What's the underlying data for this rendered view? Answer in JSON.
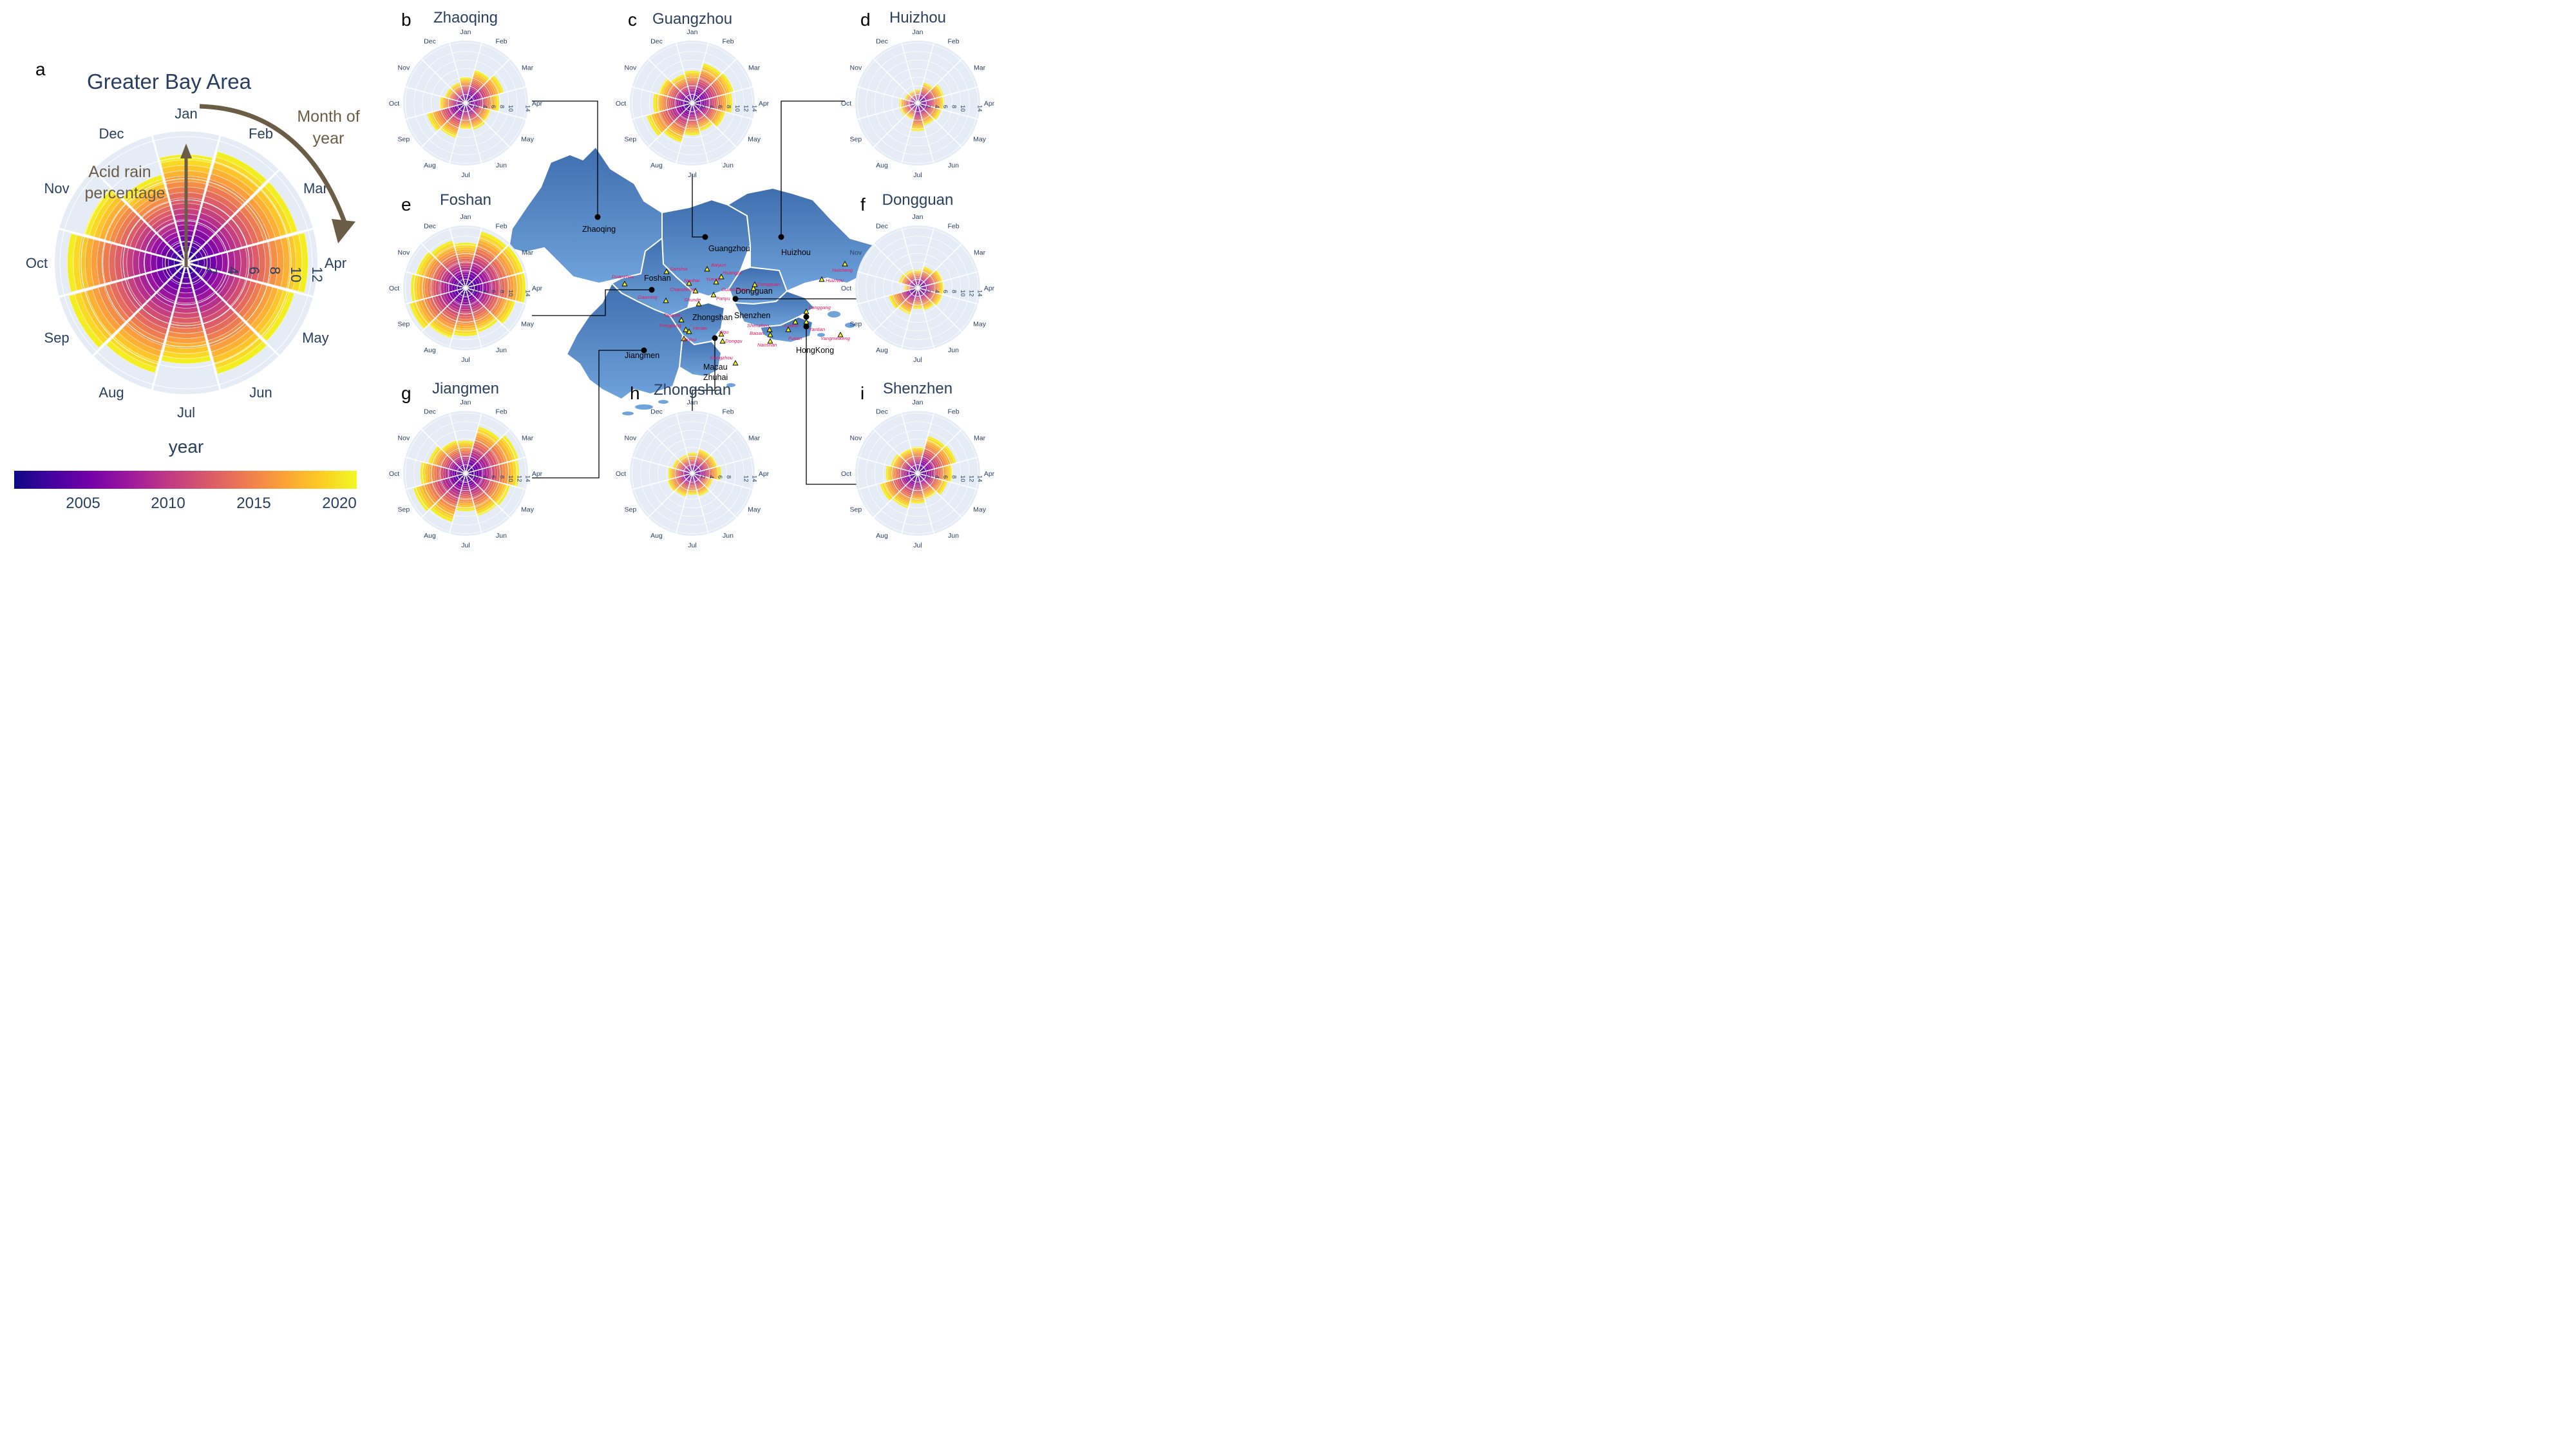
{
  "colors": {
    "polar_bg": "#e5ecf6",
    "grid": "#ffffff",
    "text": "#2a3f5f",
    "annotation": "#6b5d45",
    "map_fill": "#5b8cc9",
    "map_fill_dark": "#416fae",
    "border": "#ffffff",
    "site_label": "#e8175d",
    "leader": "#000000"
  },
  "colorscale": [
    "#0d0887",
    "#46039f",
    "#7201a8",
    "#9c179e",
    "#bd3786",
    "#d8576b",
    "#ed7953",
    "#fb9f3a",
    "#fdca26",
    "#f0f921"
  ],
  "months": [
    "Jan",
    "Feb",
    "Mar",
    "Apr",
    "May",
    "Jun",
    "Jul",
    "Aug",
    "Sep",
    "Oct",
    "Nov",
    "Dec"
  ],
  "main": {
    "letter": "a",
    "title": "Greater Bay Area",
    "annotation_month": [
      "Month of",
      "year"
    ],
    "annotation_acid": [
      "Acid rain",
      "percentage"
    ],
    "colorbar_title": "year",
    "colorbar_ticks": [
      "2005",
      "2010",
      "2015",
      "2020"
    ]
  },
  "map": {
    "cities": [
      {
        "name": "Zhaoqing",
        "panel": "b"
      },
      {
        "name": "Guangzhou",
        "panel": "c"
      },
      {
        "name": "Huizhou",
        "panel": "d"
      },
      {
        "name": "Foshan",
        "panel": "e"
      },
      {
        "name": "Dongguan",
        "panel": "f"
      },
      {
        "name": "Jiangmen",
        "panel": "g"
      },
      {
        "name": "Zhongshan",
        "panel": "h"
      },
      {
        "name": "Shenzhen",
        "panel": "i"
      },
      {
        "name": "HongKong",
        "panel": ""
      },
      {
        "name": "Macau",
        "panel": ""
      },
      {
        "name": "Zhuhai",
        "panel": ""
      }
    ],
    "sites": [
      "Duanzhou",
      "Sanshui",
      "Nanhai",
      "Chancheng",
      "Gaoming",
      "Shunde",
      "Baiyun",
      "Huangpu",
      "Yuexiu",
      "Guancheng",
      "Panyu",
      "Dongguan",
      "Huicheng",
      "Huizhou",
      "Longgang",
      "Yantian",
      "Luohu",
      "Futian",
      "Shenzhen",
      "Baoan",
      "Nanshan",
      "Yangmeikeng",
      "Tangxia",
      "Pengjiang",
      "Henan",
      "Xinhui",
      "Xiqu",
      "Dongqu",
      "Xiangzhou"
    ]
  },
  "chart_data": [
    {
      "id": "a",
      "type": "barpolar",
      "title": "Greater Bay Area",
      "theta": [
        "Jan",
        "Feb",
        "Mar",
        "Apr",
        "May",
        "Jun",
        "Jul",
        "Aug",
        "Sep",
        "Oct",
        "Nov",
        "Dec"
      ],
      "r_ticks": [
        2,
        4,
        6,
        8,
        10,
        12
      ],
      "r_max": 12.5,
      "radial_tick_labels": [
        "2",
        "4",
        "6",
        "8",
        "10",
        "12"
      ],
      "years": "2002-2021",
      "values": [
        10.3,
        11.0,
        11.0,
        11.6,
        10.7,
        11.0,
        9.6,
        10.9,
        11.6,
        11.3,
        10.1,
        8.7
      ],
      "colorbar": {
        "title": "year",
        "ticks": [
          2005,
          2010,
          2015,
          2020
        ]
      }
    },
    {
      "id": "b",
      "type": "barpolar",
      "title": "Zhaoqing",
      "theta": [
        "Jan",
        "Feb",
        "Mar",
        "Apr",
        "May",
        "Jun",
        "Jul",
        "Aug",
        "Sep",
        "Oct",
        "Nov",
        "Dec"
      ],
      "radial_tick_labels": [
        "2",
        "4",
        "6",
        "8",
        "10",
        "14"
      ],
      "r_max": 14.5,
      "values": [
        6.0,
        8.0,
        9.2,
        7.8,
        6.2,
        6.5,
        6.0,
        8.4,
        9.3,
        6.0,
        5.0,
        5.0
      ]
    },
    {
      "id": "c",
      "type": "barpolar",
      "title": "Guangzhou",
      "theta": [
        "Jan",
        "Feb",
        "Mar",
        "Apr",
        "May",
        "Jun",
        "Jul",
        "Aug",
        "Sep",
        "Oct",
        "Nov",
        "Dec"
      ],
      "radial_tick_labels": [
        "2",
        "4",
        "6",
        "8",
        "10",
        "12",
        "14"
      ],
      "r_max": 14.5,
      "values": [
        7.5,
        9.6,
        10.0,
        9.3,
        8.0,
        6.8,
        7.5,
        9.5,
        11.0,
        9.1,
        8.2,
        7.0
      ]
    },
    {
      "id": "d",
      "type": "barpolar",
      "title": "Huizhou",
      "theta": [
        "Jan",
        "Feb",
        "Mar",
        "Apr",
        "May",
        "Jun",
        "Jul",
        "Aug",
        "Sep",
        "Oct",
        "Nov",
        "Dec"
      ],
      "radial_tick_labels": [
        "2",
        "4",
        "6",
        "8",
        "10",
        "14"
      ],
      "r_max": 14.5,
      "values": [
        3.2,
        5.0,
        6.3,
        6.2,
        5.7,
        5.4,
        6.5,
        4.0,
        4.3,
        4.3,
        3.2,
        3.0
      ]
    },
    {
      "id": "e",
      "type": "barpolar",
      "title": "Foshan",
      "theta": [
        "Jan",
        "Feb",
        "Mar",
        "Apr",
        "May",
        "Jun",
        "Jul",
        "Aug",
        "Sep",
        "Oct",
        "Nov",
        "Dec"
      ],
      "radial_tick_labels": [
        "2",
        "4",
        "6",
        "8",
        "10",
        "14"
      ],
      "r_max": 14.5,
      "values": [
        10.5,
        13.6,
        13.9,
        14.0,
        12.0,
        10.7,
        11.2,
        12.2,
        13.5,
        12.7,
        12.0,
        11.4
      ]
    },
    {
      "id": "f",
      "type": "barpolar",
      "title": "Dongguan",
      "theta": [
        "Jan",
        "Feb",
        "Mar",
        "Apr",
        "May",
        "Jun",
        "Jul",
        "Aug",
        "Sep",
        "Oct",
        "Nov",
        "Dec"
      ],
      "radial_tick_labels": [
        "2",
        "4",
        "6",
        "8",
        "10",
        "12",
        "14"
      ],
      "r_max": 14.5,
      "values": [
        4.2,
        5.2,
        6.1,
        6.1,
        6.0,
        5.4,
        4.9,
        6.4,
        7.0,
        3.1,
        4.6,
        4.4
      ]
    },
    {
      "id": "g",
      "type": "barpolar",
      "title": "Jiangmen",
      "theta": [
        "Jan",
        "Feb",
        "Mar",
        "Apr",
        "May",
        "Jun",
        "Jul",
        "Aug",
        "Sep",
        "Oct",
        "Nov",
        "Dec"
      ],
      "radial_tick_labels": [
        "2",
        "4",
        "6",
        "8",
        "10",
        "12",
        "14"
      ],
      "r_max": 14.5,
      "values": [
        7.6,
        11.3,
        12.7,
        12.4,
        10.7,
        10.3,
        8.8,
        11.7,
        12.6,
        10.5,
        9.0,
        8.0
      ]
    },
    {
      "id": "h",
      "type": "barpolar",
      "title": "Zhongshan",
      "theta": [
        "Jan",
        "Feb",
        "Mar",
        "Apr",
        "May",
        "Jun",
        "Jul",
        "Aug",
        "Sep",
        "Oct",
        "Nov",
        "Dec"
      ],
      "radial_tick_labels": [
        "2",
        "4",
        "6",
        "8",
        "12",
        "14"
      ],
      "r_max": 14.5,
      "values": [
        4.8,
        5.8,
        6.1,
        6.7,
        5.0,
        5.5,
        5.0,
        5.6,
        6.1,
        5.6,
        4.8,
        4.5
      ]
    },
    {
      "id": "i",
      "type": "barpolar",
      "title": "Shenzhen",
      "theta": [
        "Jan",
        "Feb",
        "Mar",
        "Apr",
        "May",
        "Jun",
        "Jul",
        "Aug",
        "Sep",
        "Oct",
        "Nov",
        "Dec"
      ],
      "radial_tick_labels": [
        "2",
        "4",
        "6",
        "8",
        "10",
        "12",
        "14"
      ],
      "r_max": 14.5,
      "values": [
        6.2,
        9.0,
        9.3,
        8.1,
        7.2,
        6.2,
        7.0,
        8.4,
        9.1,
        7.4,
        6.5,
        6.0
      ]
    }
  ]
}
